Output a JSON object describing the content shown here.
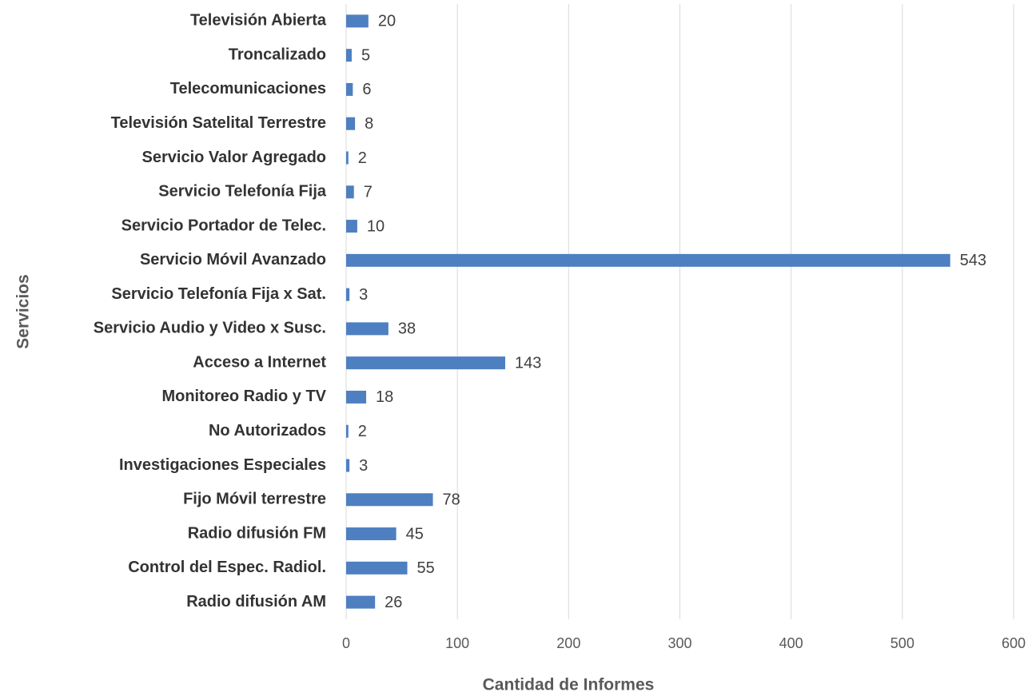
{
  "chart_data": {
    "type": "barh",
    "x_label": "Cantidad de Informes",
    "y_label": "Servicios",
    "categories": [
      "Televisión Abierta",
      "Troncalizado",
      "Telecomunicaciones",
      "Televisión Satelital Terrestre",
      "Servicio Valor Agregado",
      "Servicio Telefonía Fija",
      "Servicio Portador de Telec.",
      "Servicio Móvil Avanzado",
      "Servicio Telefonía Fija x Sat.",
      "Servicio Audio y Video x Susc.",
      "Acceso a Internet",
      "Monitoreo Radio y TV",
      "No Autorizados",
      "Investigaciones Especiales",
      "Fijo Móvil terrestre",
      "Radio difusión FM",
      "Control del Espec. Radiol.",
      "Radio difusión AM"
    ],
    "values": [
      20,
      5,
      6,
      8,
      2,
      7,
      10,
      543,
      3,
      38,
      143,
      18,
      2,
      3,
      78,
      45,
      55,
      26
    ],
    "color": "#4e7fc1",
    "xlim": [
      0,
      600
    ],
    "xticks": [
      0,
      100,
      200,
      300,
      400,
      500,
      600
    ],
    "grid": true
  }
}
